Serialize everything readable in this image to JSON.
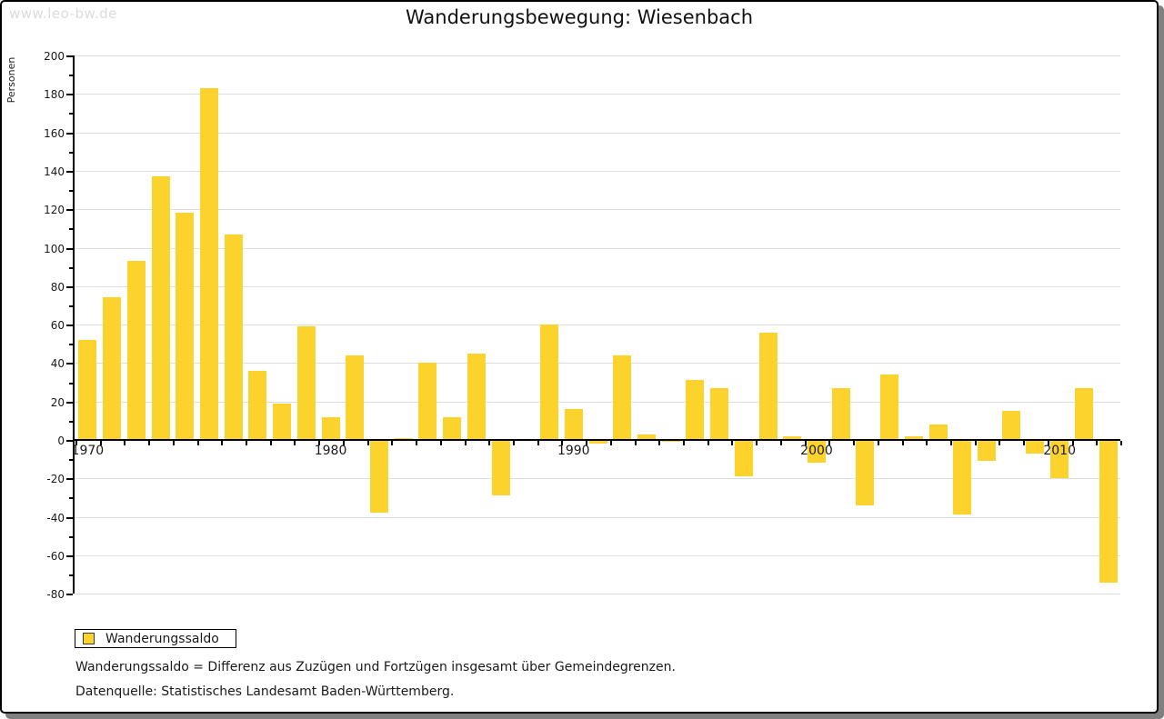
{
  "watermark": "www.leo-bw.de",
  "header": {
    "title": "Wanderungsbewegung: Wiesenbach"
  },
  "legend": {
    "label": "Wanderungssaldo"
  },
  "footnotes": {
    "definition": "Wanderungssaldo = Differenz aus Zuzügen und Fortzügen insgesamt über Gemeindegrenzen.",
    "source": "Datenquelle: Statistisches Landesamt Baden-Württemberg."
  },
  "colors": {
    "bar": "#fcd22c",
    "grid": "#dddddd",
    "axis": "#000000",
    "watermark": "#dbdbdb",
    "shadow": "#808080"
  },
  "chart_data": {
    "type": "bar",
    "title": "Wanderungsbewegung: Wiesenbach",
    "xlabel": "",
    "ylabel": "Personen",
    "series_name": "Wanderungssaldo",
    "ylim": [
      -80,
      200
    ],
    "ytick_major_step": 20,
    "ytick_minor_step": 10,
    "grid": true,
    "legend_position": "bottom-left",
    "x": [
      1970,
      1971,
      1972,
      1973,
      1974,
      1975,
      1976,
      1977,
      1978,
      1979,
      1980,
      1981,
      1982,
      1983,
      1984,
      1985,
      1986,
      1987,
      1988,
      1989,
      1990,
      1991,
      1992,
      1993,
      1994,
      1995,
      1996,
      1997,
      1998,
      1999,
      2000,
      2001,
      2002,
      2003,
      2004,
      2005,
      2006,
      2007,
      2008,
      2009,
      2010,
      2011,
      2012
    ],
    "values": [
      52,
      74,
      93,
      137,
      118,
      183,
      107,
      36,
      19,
      59,
      12,
      44,
      -38,
      1,
      40,
      12,
      45,
      -29,
      0,
      60,
      16,
      -2,
      44,
      3,
      -1,
      31,
      27,
      -19,
      56,
      2,
      -12,
      27,
      -34,
      34,
      2,
      8,
      -39,
      -11,
      15,
      -7,
      -20,
      27,
      -74
    ],
    "xtick_labels": [
      1970,
      1980,
      1990,
      2000,
      2010
    ]
  }
}
